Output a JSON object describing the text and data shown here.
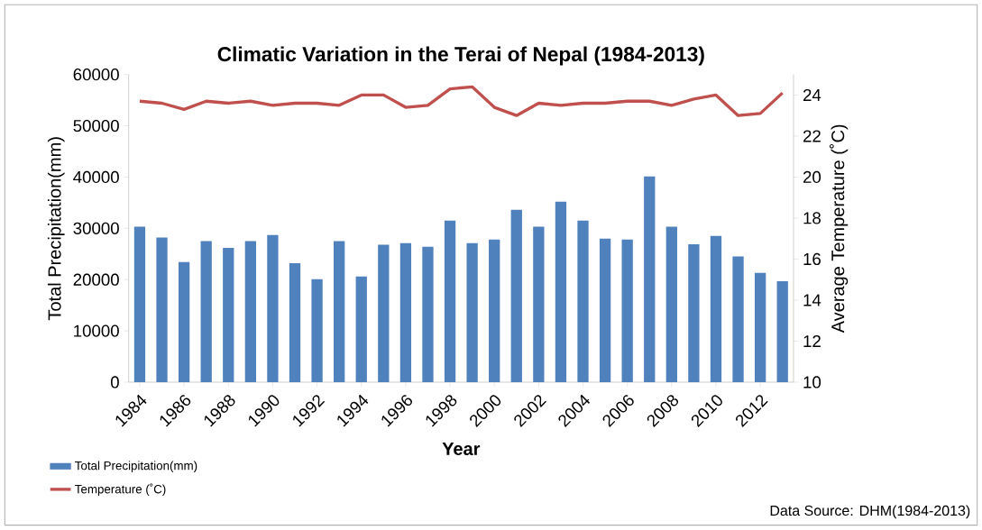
{
  "chart_data": {
    "type": "bar",
    "title": "Climatic Variation in the Terai of Nepal (1984-2013)",
    "xlabel": "Year",
    "ylabel": "Total Precipitation(mm)",
    "y2label": "Average Temperature (˚C)",
    "categories": [
      "1984",
      null,
      "1986",
      null,
      "1988",
      null,
      "1990",
      null,
      "1992",
      null,
      "1994",
      null,
      "1996",
      null,
      "1998",
      null,
      "2000",
      null,
      "2002",
      null,
      "2004",
      null,
      "2006",
      null,
      "2008",
      null,
      "2010",
      null,
      "2012",
      null
    ],
    "series": [
      {
        "name": "Total Precipitation(mm)",
        "color": "#4f81bd",
        "values": [
          30300,
          28200,
          23400,
          27500,
          26200,
          27500,
          28700,
          23200,
          20100,
          27500,
          20600,
          26800,
          27100,
          26400,
          31500,
          27100,
          27800,
          33600,
          30300,
          35200,
          31500,
          28000,
          27800,
          40100,
          30300,
          26900,
          28500,
          24500,
          21300,
          19700
        ]
      },
      {
        "name": "Temperature (˚C)",
        "type": "line",
        "axis": "y2",
        "color": "#c0504d",
        "values": [
          23.7,
          23.6,
          23.3,
          23.7,
          23.6,
          23.7,
          23.5,
          23.6,
          23.6,
          23.5,
          24.0,
          24.0,
          23.4,
          23.5,
          24.3,
          24.4,
          23.4,
          23.0,
          23.6,
          23.5,
          23.6,
          23.6,
          23.7,
          23.7,
          23.5,
          23.8,
          24.0,
          23.0,
          23.1,
          24.1
        ]
      }
    ],
    "ylim": [
      0,
      60000
    ],
    "yticks": [
      0,
      10000,
      20000,
      30000,
      40000,
      50000,
      60000
    ],
    "y2lim": [
      10,
      25
    ],
    "y2ticks": [
      10,
      12,
      14,
      16,
      18,
      20,
      22,
      24
    ],
    "legend": "bottom left",
    "grid": false,
    "annotations": [
      "Data Source: DHM(1984-2013)"
    ]
  }
}
